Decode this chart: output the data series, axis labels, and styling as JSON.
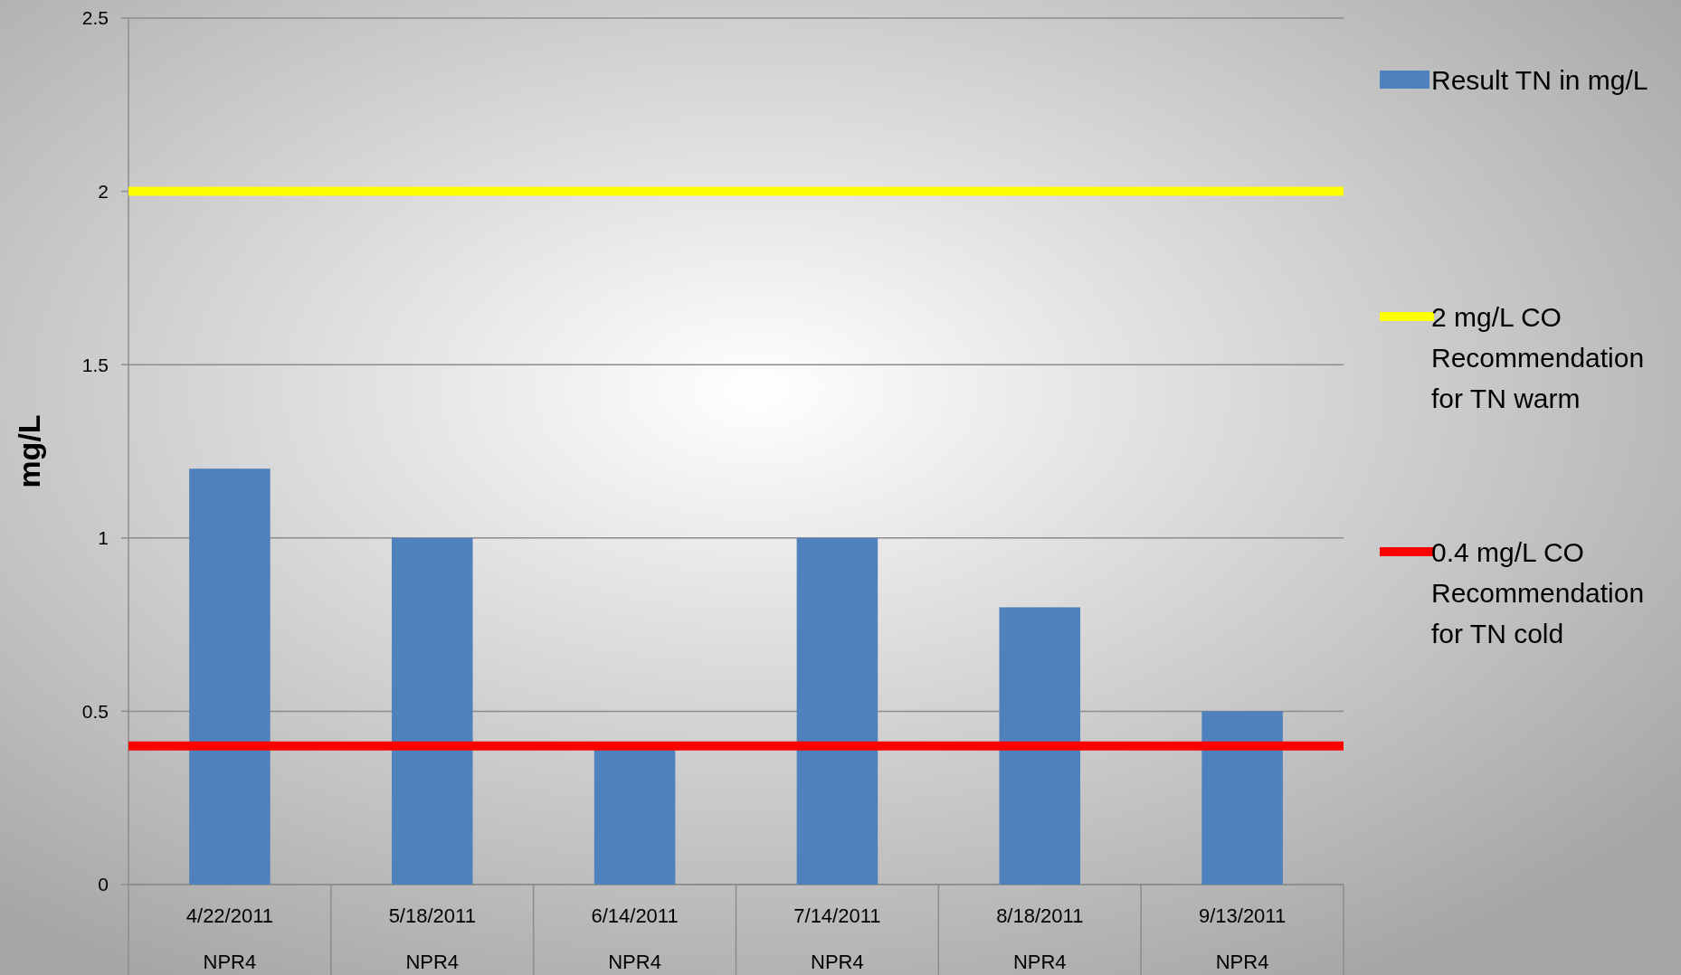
{
  "chart_data": {
    "type": "bar",
    "ylabel": "mg/L",
    "categories": [
      "4/22/2011\nNPR4",
      "5/18/2011\nNPR4",
      "6/14/2011\nNPR4",
      "7/14/2011\nNPR4",
      "8/18/2011\nNPR4",
      "9/13/2011\nNPR4"
    ],
    "series": [
      {
        "name": "Result TN in mg/L",
        "color": "#4f81bd",
        "values": [
          1.2,
          1.0,
          0.4,
          1.0,
          0.8,
          0.5
        ]
      }
    ],
    "ylim": [
      0,
      2.5
    ],
    "yticks": [
      0,
      0.5,
      1,
      1.5,
      2,
      2.5
    ],
    "grid": "y",
    "legend": "right",
    "ref_lines": [
      {
        "axis": "y",
        "value": 2,
        "label": "2 mg/L CO Recommendation for TN warm",
        "color": "#ffff00"
      },
      {
        "axis": "y",
        "value": 0.4,
        "label": "0.4 mg/L CO Recommendation for TN cold",
        "color": "#ff0000"
      }
    ]
  }
}
